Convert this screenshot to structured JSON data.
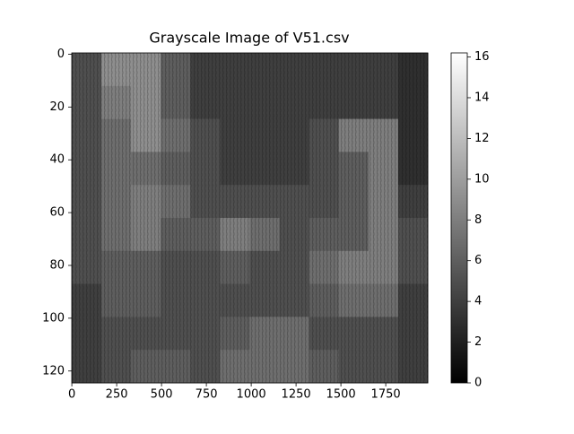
{
  "chart_data": {
    "type": "heatmap",
    "title": "Grayscale Image of V51.csv",
    "colormap": "gray",
    "xlim": [
      -0.5,
      1984.5
    ],
    "ylim": [
      124.5,
      -0.5
    ],
    "xticks": [
      0,
      250,
      500,
      750,
      1000,
      1250,
      1500,
      1750
    ],
    "yticks": [
      0,
      20,
      40,
      60,
      80,
      100,
      120
    ],
    "clim": [
      0,
      16.2
    ],
    "cticks": [
      0,
      2,
      4,
      6,
      8,
      10,
      12,
      14,
      16
    ],
    "values": [
      [
        5,
        9,
        9,
        6,
        4,
        4,
        4,
        4,
        4,
        4,
        4,
        3
      ],
      [
        5,
        8,
        9,
        6,
        4,
        4,
        4,
        4,
        4,
        4,
        4,
        3
      ],
      [
        5,
        7,
        9,
        7,
        5,
        4,
        4,
        4,
        5,
        8,
        8,
        3
      ],
      [
        5,
        7,
        7,
        6,
        5,
        4,
        4,
        4,
        5,
        6,
        8,
        3
      ],
      [
        5,
        7,
        8,
        7,
        5,
        5,
        5,
        5,
        5,
        6,
        8,
        4
      ],
      [
        5,
        7,
        8,
        6,
        6,
        8,
        7,
        5,
        6,
        6,
        8,
        5
      ],
      [
        5,
        6,
        6,
        5,
        5,
        6,
        5,
        5,
        7,
        8,
        8,
        5
      ],
      [
        4,
        6,
        6,
        5,
        5,
        5,
        5,
        5,
        6,
        7,
        7,
        4
      ],
      [
        4,
        5,
        5,
        5,
        5,
        6,
        7,
        7,
        5,
        5,
        5,
        4
      ],
      [
        4,
        5,
        6,
        6,
        5,
        7,
        7,
        7,
        6,
        5,
        5,
        4
      ]
    ]
  }
}
